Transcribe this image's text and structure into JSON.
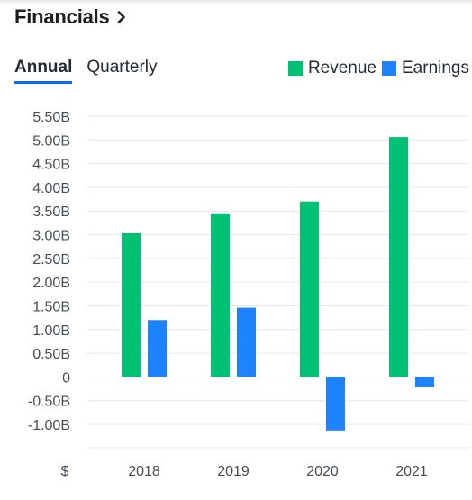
{
  "header": {
    "title": "Financials",
    "chevron_icon": "chevron-right-icon"
  },
  "tabs": [
    {
      "label": "Annual",
      "active": true
    },
    {
      "label": "Quarterly",
      "active": false
    }
  ],
  "colors": {
    "revenue": "#00c073",
    "earnings": "#1e83ff",
    "tab_underline": "#0f69ff"
  },
  "chart_data": {
    "type": "bar",
    "currency_label": "$",
    "categories": [
      "2018",
      "2019",
      "2020",
      "2021"
    ],
    "series": [
      {
        "name": "Revenue",
        "color": "#00c073",
        "values": [
          3.03,
          3.45,
          3.7,
          5.06
        ]
      },
      {
        "name": "Earnings",
        "color": "#1e83ff",
        "values": [
          1.2,
          1.46,
          -1.13,
          -0.22
        ]
      }
    ],
    "y_unit": "B",
    "ylim": [
      -1.0,
      5.5
    ],
    "yticks": [
      "5.50B",
      "5.00B",
      "4.50B",
      "4.00B",
      "3.50B",
      "3.00B",
      "2.50B",
      "2.00B",
      "1.50B",
      "1.00B",
      "0.50B",
      "0",
      "-0.50B",
      "-1.00B"
    ],
    "ytick_values": [
      5.5,
      5.0,
      4.5,
      4.0,
      3.5,
      3.0,
      2.5,
      2.0,
      1.5,
      1.0,
      0.5,
      0,
      -0.5,
      -1.0
    ],
    "grid": true,
    "legend": "top-right"
  }
}
